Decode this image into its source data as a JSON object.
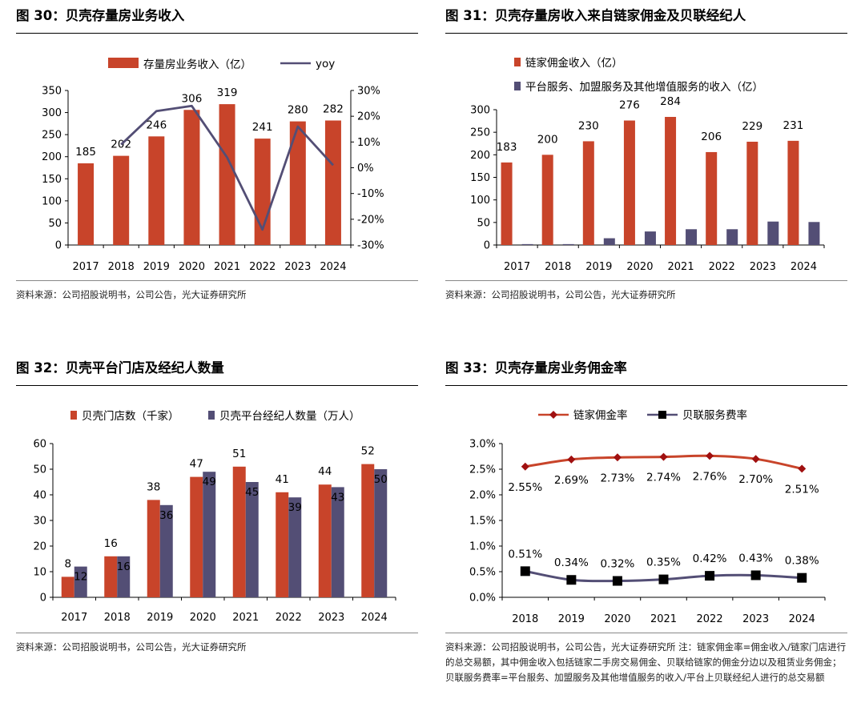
{
  "colors": {
    "red": "#C8442A",
    "purple": "#534E75",
    "axis": "#000000"
  },
  "panels": [
    {
      "title": "图 30：贝壳存量房业务收入",
      "source": "资料来源：公司招股说明书，公司公告，光大证券研究所"
    },
    {
      "title": "图 31：贝壳存量房收入来自链家佣金及贝联经纪人",
      "source": "资料来源：公司招股说明书，公司公告，光大证券研究所"
    },
    {
      "title": "图 32：贝壳平台门店及经纪人数量",
      "source": "资料来源：公司招股说明书，公司公告，光大证券研究所"
    },
    {
      "title": "图 33：贝壳存量房业务佣金率",
      "source": "资料来源：公司招股说明书，公司公告，光大证券研究所 注：链家佣金率=佣金收入/链家门店进行的总交易额，其中佣金收入包括链家二手房交易佣金、贝联给链家的佣金分边以及租赁业务佣金；贝联服务费率=平台服务、加盟服务及其他增值服务的收入/平台上贝联经纪人进行的总交易额"
    }
  ],
  "chart_data": [
    {
      "type": "bar",
      "title": "图 30：贝壳存量房业务收入",
      "categories": [
        "2017",
        "2018",
        "2019",
        "2020",
        "2021",
        "2022",
        "2023",
        "2024"
      ],
      "series": [
        {
          "name": "存量房业务收入（亿）",
          "type": "bar",
          "axis": "left",
          "values": [
            185,
            202,
            246,
            306,
            319,
            241,
            280,
            282
          ],
          "labels": [
            "185",
            "202",
            "246",
            "306",
            "319",
            "241",
            "280",
            "282"
          ]
        },
        {
          "name": "yoy",
          "type": "line",
          "axis": "right",
          "values": [
            null,
            9,
            22,
            24,
            4,
            -24,
            16,
            1
          ]
        }
      ],
      "ylim": [
        0,
        350
      ],
      "yticks": [
        "0",
        "50",
        "100",
        "150",
        "200",
        "250",
        "300",
        "350"
      ],
      "y2lim": [
        -30,
        30
      ],
      "y2ticks": [
        "-30%",
        "-20%",
        "-10%",
        "0%",
        "10%",
        "20%",
        "30%"
      ],
      "legend": "top"
    },
    {
      "type": "bar",
      "title": "图 31：贝壳存量房收入来自链家佣金及贝联经纪人",
      "categories": [
        "2017",
        "2018",
        "2019",
        "2020",
        "2021",
        "2022",
        "2023",
        "2024"
      ],
      "series": [
        {
          "name": "链家佣金收入（亿）",
          "values": [
            183,
            200,
            230,
            276,
            284,
            206,
            229,
            231
          ],
          "labels": [
            "183",
            "200",
            "230",
            "276",
            "284",
            "206",
            "229",
            "231"
          ]
        },
        {
          "name": "平台服务、加盟服务及其他增值服务的收入（亿）",
          "values": [
            2,
            2,
            15,
            30,
            35,
            35,
            52,
            51
          ]
        }
      ],
      "ylim": [
        0,
        300
      ],
      "yticks": [
        "0",
        "50",
        "100",
        "150",
        "200",
        "250",
        "300"
      ],
      "legend": "top-left"
    },
    {
      "type": "bar",
      "title": "图 32：贝壳平台门店及经纪人数量",
      "categories": [
        "2017",
        "2018",
        "2019",
        "2020",
        "2021",
        "2022",
        "2023",
        "2024"
      ],
      "series": [
        {
          "name": "贝壳门店数（千家）",
          "values": [
            8,
            16,
            38,
            47,
            51,
            41,
            44,
            52
          ],
          "labels": [
            "8",
            "16",
            "38",
            "47",
            "51",
            "41",
            "44",
            "52"
          ]
        },
        {
          "name": "贝壳平台经纪人数量（万人）",
          "values": [
            12,
            16,
            36,
            49,
            45,
            39,
            43,
            50
          ],
          "labels": [
            "12",
            "16",
            "36",
            "49",
            "45",
            "39",
            "43",
            "50"
          ]
        }
      ],
      "ylim": [
        0,
        60
      ],
      "yticks": [
        "0",
        "10",
        "20",
        "30",
        "40",
        "50",
        "60"
      ],
      "legend": "top"
    },
    {
      "type": "line",
      "title": "图 33：贝壳存量房业务佣金率",
      "categories": [
        "2018",
        "2019",
        "2020",
        "2021",
        "2022",
        "2023",
        "2024"
      ],
      "series": [
        {
          "name": "链家佣金率",
          "marker": "diamond",
          "values": [
            2.55,
            2.69,
            2.73,
            2.74,
            2.76,
            2.7,
            2.51
          ],
          "labels": [
            "2.55%",
            "2.69%",
            "2.73%",
            "2.74%",
            "2.76%",
            "2.70%",
            "2.51%"
          ]
        },
        {
          "name": "贝联服务费率",
          "marker": "square",
          "values": [
            0.51,
            0.34,
            0.32,
            0.35,
            0.42,
            0.43,
            0.38
          ],
          "labels": [
            "0.51%",
            "0.34%",
            "0.32%",
            "0.35%",
            "0.42%",
            "0.43%",
            "0.38%"
          ]
        }
      ],
      "ylim": [
        0,
        3.0
      ],
      "yticks": [
        "0.0%",
        "0.5%",
        "1.0%",
        "1.5%",
        "2.0%",
        "2.5%",
        "3.0%"
      ],
      "legend": "top"
    }
  ]
}
